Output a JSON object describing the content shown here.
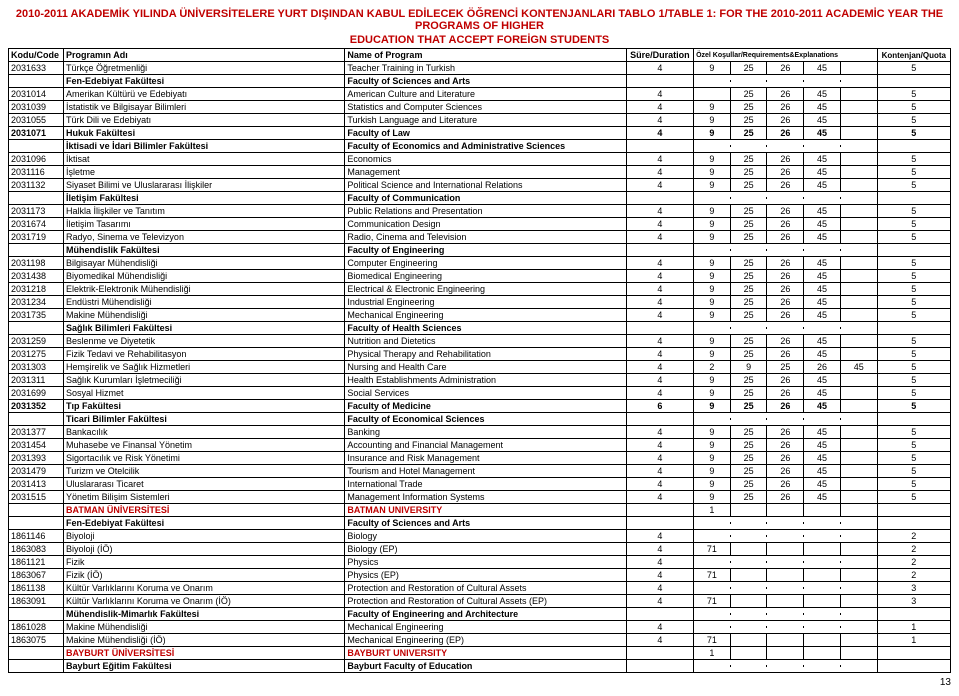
{
  "title_line1": "2010-2011 AKADEMİK YILINDA ÜNİVERSİTELERE YURT DIŞINDAN KABUL EDİLECEK ÖĞRENCİ KONTENJANLARI TABLO 1/TABLE 1: FOR THE 2010-2011 ACADEMİC YEAR THE PROGRAMS OF HIGHER",
  "title_line2": "EDUCATION THAT ACCEPT FOREİGN STUDENTS",
  "headers": {
    "code": "Kodu/Code",
    "prog_tr": "Programın Adı",
    "prog_en": "Name of Program",
    "dur": "Süre/Duration",
    "req": "Özel Koşullar/Requirements&Explanations",
    "quota": "Kontenjan/Quota"
  },
  "page_num": "13",
  "rows": [
    {
      "code": "2031633",
      "tr": "Türkçe Öğretmenliği",
      "en": "Teacher Training in Turkish",
      "dur": "4",
      "req": [
        "9",
        "25",
        "26",
        "45",
        ""
      ],
      "quota": "5"
    },
    {
      "code": "",
      "tr": "Fen-Edebiyat Fakültesi",
      "en": "Faculty of Sciences and Arts",
      "dur": "",
      "req": [
        "",
        "",
        "",
        "",
        ""
      ],
      "quota": "",
      "bold": true
    },
    {
      "code": "2031014",
      "tr": "Amerikan Kültürü ve Edebiyatı",
      "en": "American Culture and Literature",
      "dur": "4",
      "req": [
        "",
        "25",
        "26",
        "45",
        ""
      ],
      "quota": "5"
    },
    {
      "code": "2031039",
      "tr": "İstatistik ve Bilgisayar Bilimleri",
      "en": "Statistics and Computer Sciences",
      "dur": "4",
      "req": [
        "9",
        "25",
        "26",
        "45",
        ""
      ],
      "quota": "5"
    },
    {
      "code": "2031055",
      "tr": "Türk Dili ve Edebiyatı",
      "en": "Turkish Language and Literature",
      "dur": "4",
      "req": [
        "9",
        "25",
        "26",
        "45",
        ""
      ],
      "quota": "5"
    },
    {
      "code": "2031071",
      "tr": "Hukuk Fakültesi",
      "en": "Faculty of Law",
      "dur": "4",
      "req": [
        "9",
        "25",
        "26",
        "45",
        ""
      ],
      "quota": "5",
      "bold": true
    },
    {
      "code": "",
      "tr": "İktisadi ve İdari Bilimler Fakültesi",
      "en": "Faculty of Economics and Administrative Sciences",
      "dur": "",
      "req": [
        "",
        "",
        "",
        "",
        ""
      ],
      "quota": "",
      "bold": true
    },
    {
      "code": "2031096",
      "tr": "İktisat",
      "en": "Economics",
      "dur": "4",
      "req": [
        "9",
        "25",
        "26",
        "45",
        ""
      ],
      "quota": "5"
    },
    {
      "code": "2031116",
      "tr": "İşletme",
      "en": "Management",
      "dur": "4",
      "req": [
        "9",
        "25",
        "26",
        "45",
        ""
      ],
      "quota": "5"
    },
    {
      "code": "2031132",
      "tr": "Siyaset Bilimi ve Uluslararası İlişkiler",
      "en": "Political Science and International Relations",
      "dur": "4",
      "req": [
        "9",
        "25",
        "26",
        "45",
        ""
      ],
      "quota": "5"
    },
    {
      "code": "",
      "tr": "İletişim Fakültesi",
      "en": "Faculty of Communication",
      "dur": "",
      "req": [
        "",
        "",
        "",
        "",
        ""
      ],
      "quota": "",
      "bold": true
    },
    {
      "code": "2031173",
      "tr": "Halkla İlişkiler ve Tanıtım",
      "en": "Public Relations and Presentation",
      "dur": "4",
      "req": [
        "9",
        "25",
        "26",
        "45",
        ""
      ],
      "quota": "5"
    },
    {
      "code": "2031674",
      "tr": "İletişim Tasarımı",
      "en": "Communication Design",
      "dur": "4",
      "req": [
        "9",
        "25",
        "26",
        "45",
        ""
      ],
      "quota": "5"
    },
    {
      "code": "2031719",
      "tr": "Radyo, Sinema ve Televizyon",
      "en": "Radio, Cinema and Television",
      "dur": "4",
      "req": [
        "9",
        "25",
        "26",
        "45",
        ""
      ],
      "quota": "5"
    },
    {
      "code": "",
      "tr": "Mühendislik Fakültesi",
      "en": "Faculty of Engineering",
      "dur": "",
      "req": [
        "",
        "",
        "",
        "",
        ""
      ],
      "quota": "",
      "bold": true
    },
    {
      "code": "2031198",
      "tr": "Bilgisayar Mühendisliği",
      "en": "Computer Engineering",
      "dur": "4",
      "req": [
        "9",
        "25",
        "26",
        "45",
        ""
      ],
      "quota": "5"
    },
    {
      "code": "2031438",
      "tr": "Biyomedikal Mühendisliği",
      "en": "Biomedical Engineering",
      "dur": "4",
      "req": [
        "9",
        "25",
        "26",
        "45",
        ""
      ],
      "quota": "5"
    },
    {
      "code": "2031218",
      "tr": "Elektrik-Elektronik Mühendisliği",
      "en": "Electrical & Electronic Engineering",
      "dur": "4",
      "req": [
        "9",
        "25",
        "26",
        "45",
        ""
      ],
      "quota": "5"
    },
    {
      "code": "2031234",
      "tr": "Endüstri Mühendisliği",
      "en": "Industrial Engineering",
      "dur": "4",
      "req": [
        "9",
        "25",
        "26",
        "45",
        ""
      ],
      "quota": "5"
    },
    {
      "code": "2031735",
      "tr": "Makine Mühendisliği",
      "en": "Mechanical Engineering",
      "dur": "4",
      "req": [
        "9",
        "25",
        "26",
        "45",
        ""
      ],
      "quota": "5"
    },
    {
      "code": "",
      "tr": "Sağlık Bilimleri Fakültesi",
      "en": "Faculty of Health Sciences",
      "dur": "",
      "req": [
        "",
        "",
        "",
        "",
        ""
      ],
      "quota": "",
      "bold": true
    },
    {
      "code": "2031259",
      "tr": "Beslenme ve Diyetetik",
      "en": "Nutrition and Dietetics",
      "dur": "4",
      "req": [
        "9",
        "25",
        "26",
        "45",
        ""
      ],
      "quota": "5"
    },
    {
      "code": "2031275",
      "tr": "Fizik Tedavi ve Rehabilitasyon",
      "en": "Physical Therapy and Rehabilitation",
      "dur": "4",
      "req": [
        "9",
        "25",
        "26",
        "45",
        ""
      ],
      "quota": "5"
    },
    {
      "code": "2031303",
      "tr": "Hemşirelik ve Sağlık Hizmetleri",
      "en": "Nursing and Health Care",
      "dur": "4",
      "req": [
        "2",
        "9",
        "25",
        "26",
        "45"
      ],
      "quota": "5"
    },
    {
      "code": "2031311",
      "tr": "Sağlık Kurumları İşletmeciliği",
      "en": "Health Establishments Administration",
      "dur": "4",
      "req": [
        "9",
        "25",
        "26",
        "45",
        ""
      ],
      "quota": "5"
    },
    {
      "code": "2031699",
      "tr": "Sosyal Hizmet",
      "en": "Social Services",
      "dur": "4",
      "req": [
        "9",
        "25",
        "26",
        "45",
        ""
      ],
      "quota": "5"
    },
    {
      "code": "2031352",
      "tr": "Tıp Fakültesi",
      "en": "Faculty of Medicine",
      "dur": "6",
      "req": [
        "9",
        "25",
        "26",
        "45",
        ""
      ],
      "quota": "5",
      "bold": true
    },
    {
      "code": "",
      "tr": "Ticari Bilimler Fakültesi",
      "en": "Faculty of Economical Sciences",
      "dur": "",
      "req": [
        "",
        "",
        "",
        "",
        ""
      ],
      "quota": "",
      "bold": true
    },
    {
      "code": "2031377",
      "tr": "Bankacılık",
      "en": "Banking",
      "dur": "4",
      "req": [
        "9",
        "25",
        "26",
        "45",
        ""
      ],
      "quota": "5"
    },
    {
      "code": "2031454",
      "tr": "Muhasebe ve Finansal Yönetim",
      "en": "Accounting and Financial Management",
      "dur": "4",
      "req": [
        "9",
        "25",
        "26",
        "45",
        ""
      ],
      "quota": "5"
    },
    {
      "code": "2031393",
      "tr": "Sigortacılık ve Risk Yönetimi",
      "en": "Insurance and Risk Management",
      "dur": "4",
      "req": [
        "9",
        "25",
        "26",
        "45",
        ""
      ],
      "quota": "5"
    },
    {
      "code": "2031479",
      "tr": "Turizm ve Otelcilik",
      "en": "Tourism and Hotel  Management",
      "dur": "4",
      "req": [
        "9",
        "25",
        "26",
        "45",
        ""
      ],
      "quota": "5"
    },
    {
      "code": "2031413",
      "tr": "Uluslararası Ticaret",
      "en": "International Trade",
      "dur": "4",
      "req": [
        "9",
        "25",
        "26",
        "45",
        ""
      ],
      "quota": "5"
    },
    {
      "code": "2031515",
      "tr": "Yönetim Bilişim Sistemleri",
      "en": "Management Information Systems",
      "dur": "4",
      "req": [
        "9",
        "25",
        "26",
        "45",
        ""
      ],
      "quota": "5"
    },
    {
      "code": "",
      "tr": "BATMAN ÜNİVERSİTESİ",
      "en": "BATMAN UNIVERSITY",
      "dur": "",
      "req": [
        "1",
        "",
        "",
        "",
        ""
      ],
      "quota": "",
      "red": true
    },
    {
      "code": "",
      "tr": "Fen-Edebiyat Fakültesi",
      "en": "Faculty of Sciences and Arts",
      "dur": "",
      "req": [
        "",
        "",
        "",
        "",
        ""
      ],
      "quota": "",
      "bold": true
    },
    {
      "code": "1861146",
      "tr": "Biyoloji",
      "en": "Biology",
      "dur": "4",
      "req": [
        "",
        "",
        "",
        "",
        ""
      ],
      "quota": "2"
    },
    {
      "code": "1863083",
      "tr": "Biyoloji (İÖ)",
      "en": "Biology (EP)",
      "dur": "4",
      "req": [
        "71",
        "",
        "",
        "",
        ""
      ],
      "quota": "2"
    },
    {
      "code": "1861121",
      "tr": "Fizik",
      "en": "Physics",
      "dur": "4",
      "req": [
        "",
        "",
        "",
        "",
        ""
      ],
      "quota": "2"
    },
    {
      "code": "1863067",
      "tr": "Fizik (İÖ)",
      "en": "Physics (EP)",
      "dur": "4",
      "req": [
        "71",
        "",
        "",
        "",
        ""
      ],
      "quota": "2"
    },
    {
      "code": "1861138",
      "tr": "Kültür Varlıklarını Koruma ve Onarım",
      "en": "Protection and Restoration of Cultural Assets",
      "dur": "4",
      "req": [
        "",
        "",
        "",
        "",
        ""
      ],
      "quota": "3"
    },
    {
      "code": "1863091",
      "tr": "Kültür Varlıklarını Koruma ve Onarım (İÖ)",
      "en": "Protection and Restoration of Cultural Assets (EP)",
      "dur": "4",
      "req": [
        "71",
        "",
        "",
        "",
        ""
      ],
      "quota": "3"
    },
    {
      "code": "",
      "tr": "Mühendislik-Mimarlık Fakültesi",
      "en": "Faculty of Engineering and Architecture",
      "dur": "",
      "req": [
        "",
        "",
        "",
        "",
        ""
      ],
      "quota": "",
      "bold": true
    },
    {
      "code": "1861028",
      "tr": "Makine Mühendisliği",
      "en": "Mechanical Engineering",
      "dur": "4",
      "req": [
        "",
        "",
        "",
        "",
        ""
      ],
      "quota": "1"
    },
    {
      "code": "1863075",
      "tr": "Makine Mühendisliği (İÖ)",
      "en": "Mechanical Engineering (EP)",
      "dur": "4",
      "req": [
        "71",
        "",
        "",
        "",
        ""
      ],
      "quota": "1"
    },
    {
      "code": "",
      "tr": "BAYBURT ÜNİVERSİTESİ",
      "en": "BAYBURT UNIVERSITY",
      "dur": "",
      "req": [
        "1",
        "",
        "",
        "",
        ""
      ],
      "quota": "",
      "red": true
    },
    {
      "code": "",
      "tr": "Bayburt Eğitim Fakültesi",
      "en": "Bayburt Faculty of Education",
      "dur": "",
      "req": [
        "",
        "",
        "",
        "",
        ""
      ],
      "quota": "",
      "bold": true
    }
  ]
}
